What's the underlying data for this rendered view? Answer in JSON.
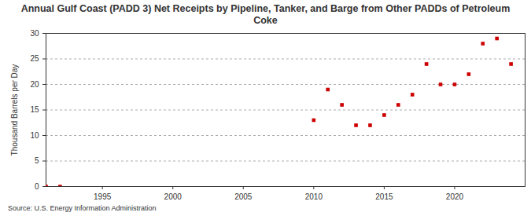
{
  "chart_data": {
    "type": "scatter",
    "title": "Annual Gulf Coast (PADD 3) Net Receipts by Pipeline, Tanker, and Barge from Other PADDs of Petroleum Coke",
    "y_label": "Thousand Barrels per Day",
    "source": "Source: U.S. Energy Information Administration",
    "x": [
      1991,
      1992,
      2010,
      2011,
      2012,
      2013,
      2014,
      2015,
      2016,
      2017,
      2018,
      2019,
      2020,
      2021,
      2022,
      2023,
      2024
    ],
    "values": [
      0,
      0,
      13,
      19,
      16,
      12,
      12,
      14,
      16,
      18,
      24,
      20,
      20,
      22,
      28,
      29,
      24
    ],
    "color": "#cc0000",
    "marker": "square",
    "xlim": [
      1991,
      2025
    ],
    "xticks": [
      1995,
      2000,
      2005,
      2010,
      2015,
      2020
    ],
    "ylim": [
      0,
      30
    ],
    "yticks": [
      0,
      5,
      10,
      15,
      20,
      25,
      30
    ],
    "grid": true
  }
}
